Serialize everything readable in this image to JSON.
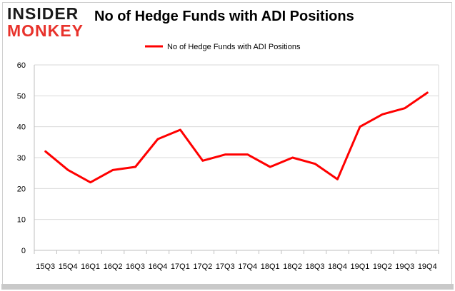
{
  "logo": {
    "line1": "INSIDER",
    "line2": "MONKEY"
  },
  "chart_data": {
    "type": "line",
    "title": "No of Hedge Funds with ADI Positions",
    "xlabel": "",
    "ylabel": "",
    "legend": {
      "position": "top-center",
      "label": "No of Hedge Funds with ADI Positions"
    },
    "categories": [
      "15Q3",
      "15Q4",
      "16Q1",
      "16Q2",
      "16Q3",
      "16Q4",
      "17Q1",
      "17Q2",
      "17Q3",
      "17Q4",
      "18Q1",
      "18Q2",
      "18Q3",
      "18Q4",
      "19Q1",
      "19Q2",
      "19Q3",
      "19Q4"
    ],
    "series": [
      {
        "name": "No of Hedge Funds with ADI Positions",
        "color": "#ff0000",
        "values": [
          32,
          26,
          22,
          26,
          27,
          36,
          39,
          29,
          31,
          31,
          27,
          30,
          28,
          23,
          40,
          44,
          46,
          51
        ]
      }
    ],
    "ylim": [
      0,
      60
    ],
    "yticks": [
      0,
      10,
      20,
      30,
      40,
      50,
      60
    ],
    "grid": true
  }
}
